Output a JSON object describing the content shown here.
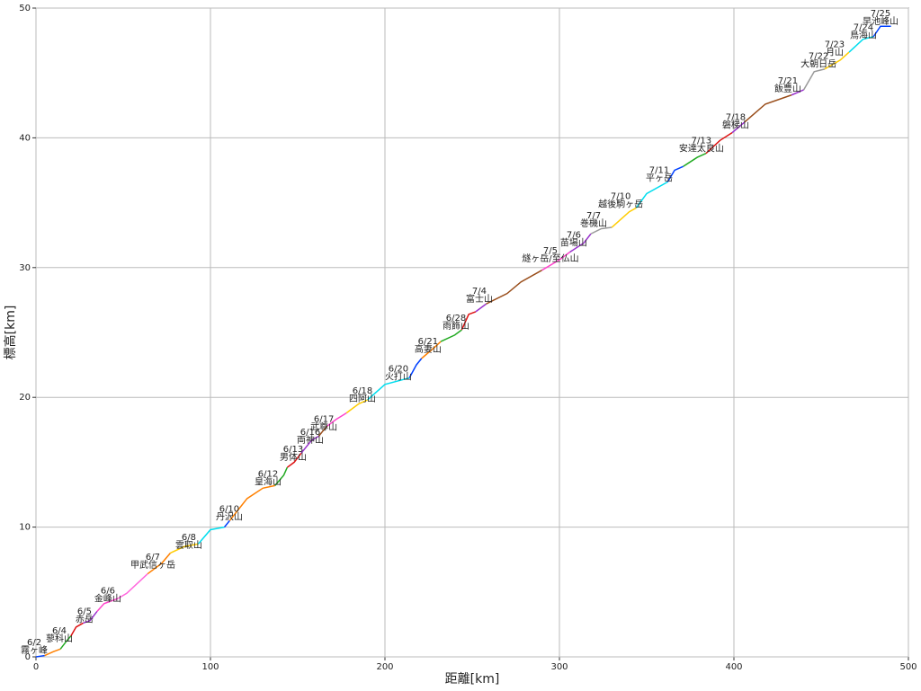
{
  "chart_data": {
    "type": "line",
    "x_label": "距離[km]",
    "y_label": "標高[km]",
    "xlim": [
      0,
      500
    ],
    "ylim": [
      0,
      50
    ],
    "xticks": [
      0,
      100,
      200,
      300,
      400,
      500
    ],
    "yticks": [
      0,
      10,
      20,
      30,
      40,
      50
    ],
    "grid": true,
    "series": [
      {
        "color": "#0040ff",
        "x": [
          0,
          5
        ],
        "values": [
          0,
          0.1
        ]
      },
      {
        "color": "#ff8000",
        "x": [
          5,
          10,
          14
        ],
        "values": [
          0.1,
          0.4,
          0.6
        ]
      },
      {
        "color": "#22aa22",
        "x": [
          14,
          18,
          20
        ],
        "values": [
          0.6,
          1.3,
          1.6
        ]
      },
      {
        "color": "#dd1111",
        "x": [
          20,
          23,
          27
        ],
        "values": [
          1.6,
          2.3,
          2.6
        ]
      },
      {
        "color": "#9933cc",
        "x": [
          27,
          31,
          35
        ],
        "values": [
          2.6,
          2.8,
          3.5
        ]
      },
      {
        "color": "#ff44cc",
        "x": [
          35,
          39,
          47
        ],
        "values": [
          3.5,
          4.1,
          4.5
        ]
      },
      {
        "color": "#ff66dd",
        "x": [
          47,
          52,
          64
        ],
        "values": [
          4.5,
          4.9,
          6.4
        ]
      },
      {
        "color": "#ff8000",
        "x": [
          64,
          72,
          77
        ],
        "values": [
          6.4,
          7.2,
          8.0
        ]
      },
      {
        "color": "#ffcc00",
        "x": [
          77,
          85,
          93
        ],
        "values": [
          8.0,
          8.5,
          8.7
        ]
      },
      {
        "color": "#00ddee",
        "x": [
          93,
          100,
          108
        ],
        "values": [
          8.7,
          9.8,
          10.0
        ]
      },
      {
        "color": "#0040ff",
        "x": [
          108,
          111
        ],
        "values": [
          10.0,
          10.5
        ]
      },
      {
        "color": "#ff8000",
        "x": [
          111,
          121,
          130,
          137
        ],
        "values": [
          10.5,
          12.2,
          13.0,
          13.2
        ]
      },
      {
        "color": "#22aa22",
        "x": [
          137,
          142,
          144
        ],
        "values": [
          13.2,
          14.0,
          14.6
        ]
      },
      {
        "color": "#dd1111",
        "x": [
          144,
          148,
          152
        ],
        "values": [
          14.6,
          15.0,
          15.7
        ]
      },
      {
        "color": "#9933cc",
        "x": [
          152,
          158,
          162
        ],
        "values": [
          15.7,
          16.7,
          17.0
        ]
      },
      {
        "color": "#994d1a",
        "x": [
          162,
          165,
          167
        ],
        "values": [
          17.0,
          17.5,
          17.8
        ]
      },
      {
        "color": "#ff44cc",
        "x": [
          167,
          172,
          178
        ],
        "values": [
          17.8,
          18.3,
          18.8
        ]
      },
      {
        "color": "#ffcc00",
        "x": [
          178,
          185,
          190
        ],
        "values": [
          18.8,
          19.5,
          19.8
        ]
      },
      {
        "color": "#00ddee",
        "x": [
          190,
          200,
          214
        ],
        "values": [
          19.8,
          21.0,
          21.5
        ]
      },
      {
        "color": "#0040ff",
        "x": [
          214,
          218,
          221
        ],
        "values": [
          21.5,
          22.5,
          23.0
        ]
      },
      {
        "color": "#ff8000",
        "x": [
          221,
          228,
          232
        ],
        "values": [
          23.0,
          23.8,
          24.3
        ]
      },
      {
        "color": "#22aa22",
        "x": [
          232,
          240,
          244
        ],
        "values": [
          24.3,
          24.8,
          25.2
        ]
      },
      {
        "color": "#dd1111",
        "x": [
          244,
          248,
          252
        ],
        "values": [
          25.2,
          26.4,
          26.6
        ]
      },
      {
        "color": "#9933cc",
        "x": [
          252,
          258
        ],
        "values": [
          26.6,
          27.2
        ]
      },
      {
        "color": "#994d1a",
        "x": [
          258,
          270,
          278,
          290
        ],
        "values": [
          27.2,
          28.0,
          28.9,
          29.8
        ]
      },
      {
        "color": "#ff44cc",
        "x": [
          290,
          300,
          306
        ],
        "values": [
          29.8,
          30.6,
          31.2
        ]
      },
      {
        "color": "#9933cc",
        "x": [
          306,
          314,
          318
        ],
        "values": [
          31.2,
          31.9,
          32.6
        ]
      },
      {
        "color": "#999999",
        "x": [
          318,
          324,
          330
        ],
        "values": [
          32.6,
          33.0,
          33.1
        ]
      },
      {
        "color": "#ffcc00",
        "x": [
          330,
          340,
          344
        ],
        "values": [
          33.1,
          34.3,
          34.6
        ]
      },
      {
        "color": "#00ddee",
        "x": [
          344,
          350,
          362
        ],
        "values": [
          34.6,
          35.7,
          36.6
        ]
      },
      {
        "color": "#0040ff",
        "x": [
          362,
          366,
          371
        ],
        "values": [
          36.6,
          37.5,
          37.8
        ]
      },
      {
        "color": "#22aa22",
        "x": [
          371,
          379,
          384
        ],
        "values": [
          37.8,
          38.5,
          38.8
        ]
      },
      {
        "color": "#dd1111",
        "x": [
          384,
          392,
          399
        ],
        "values": [
          38.8,
          39.8,
          40.4
        ]
      },
      {
        "color": "#9933cc",
        "x": [
          399,
          406
        ],
        "values": [
          40.4,
          41.2
        ]
      },
      {
        "color": "#994d1a",
        "x": [
          406,
          418,
          433
        ],
        "values": [
          41.2,
          42.6,
          43.3
        ]
      },
      {
        "color": "#9933cc",
        "x": [
          433,
          440
        ],
        "values": [
          43.3,
          43.7
        ]
      },
      {
        "color": "#999999",
        "x": [
          440,
          446,
          452
        ],
        "values": [
          43.7,
          45.1,
          45.3
        ]
      },
      {
        "color": "#ffcc00",
        "x": [
          452,
          461,
          466
        ],
        "values": [
          45.3,
          46.0,
          46.6
        ]
      },
      {
        "color": "#00ddee",
        "x": [
          466,
          474,
          480
        ],
        "values": [
          46.6,
          47.6,
          47.8
        ]
      },
      {
        "color": "#0040ff",
        "x": [
          480,
          484,
          490
        ],
        "values": [
          47.8,
          48.6,
          48.6
        ]
      }
    ],
    "annotations": [
      {
        "date": "6/2",
        "name": "霧ヶ峰",
        "x": -1.0,
        "y": 1.1
      },
      {
        "date": "6/4",
        "name": "蓼科山",
        "x": 13.4,
        "y": 2.0
      },
      {
        "date": "6/5",
        "name": "赤岳",
        "x": 27.8,
        "y": 3.5
      },
      {
        "date": "6/6",
        "name": "金峰山",
        "x": 41.2,
        "y": 5.1
      },
      {
        "date": "6/7",
        "name": "甲武信ヶ岳",
        "x": 67.0,
        "y": 7.7
      },
      {
        "date": "6/8",
        "name": "雲取山",
        "x": 87.6,
        "y": 9.2
      },
      {
        "date": "6/10",
        "name": "丹沢山",
        "x": 110.8,
        "y": 11.4
      },
      {
        "date": "6/12",
        "name": "皇海山",
        "x": 133.0,
        "y": 14.1
      },
      {
        "date": "6/13",
        "name": "男体山",
        "x": 147.4,
        "y": 16.0
      },
      {
        "date": "6/16",
        "name": "両神山",
        "x": 157.2,
        "y": 17.3
      },
      {
        "date": "6/17",
        "name": "武尊山",
        "x": 165.0,
        "y": 18.3
      },
      {
        "date": "6/18",
        "name": "四阿山",
        "x": 187.1,
        "y": 20.5
      },
      {
        "date": "6/20",
        "name": "火打山",
        "x": 207.7,
        "y": 22.2
      },
      {
        "date": "6/21",
        "name": "高妻山",
        "x": 224.7,
        "y": 24.3
      },
      {
        "date": "6/28",
        "name": "雨飾山",
        "x": 240.7,
        "y": 26.1
      },
      {
        "date": "7/4",
        "name": "富士山",
        "x": 254.1,
        "y": 28.2
      },
      {
        "date": "7/5",
        "name": "燧ヶ岳/至仏山",
        "x": 294.8,
        "y": 31.3
      },
      {
        "date": "7/6",
        "name": "苗場山",
        "x": 308.2,
        "y": 32.5
      },
      {
        "date": "7/7",
        "name": "巻機山",
        "x": 319.6,
        "y": 34.0
      },
      {
        "date": "7/10",
        "name": "越後駒ヶ岳",
        "x": 335.1,
        "y": 35.5
      },
      {
        "date": "7/11",
        "name": "平ヶ岳",
        "x": 357.2,
        "y": 37.5
      },
      {
        "date": "7/13",
        "name": "安達太良山",
        "x": 381.4,
        "y": 39.8
      },
      {
        "date": "7/18",
        "name": "磐梯山",
        "x": 401.0,
        "y": 41.6
      },
      {
        "date": "7/21",
        "name": "飯豊山",
        "x": 430.9,
        "y": 44.4
      },
      {
        "date": "7/22",
        "name": "大朝日岳",
        "x": 448.5,
        "y": 46.3
      },
      {
        "date": "7/23",
        "name": "月山",
        "x": 457.7,
        "y": 47.2
      },
      {
        "date": "7/24",
        "name": "鳥海山",
        "x": 474.2,
        "y": 48.5
      },
      {
        "date": "7/25",
        "name": "早池峰山",
        "x": 484.0,
        "y": 49.6
      }
    ]
  }
}
